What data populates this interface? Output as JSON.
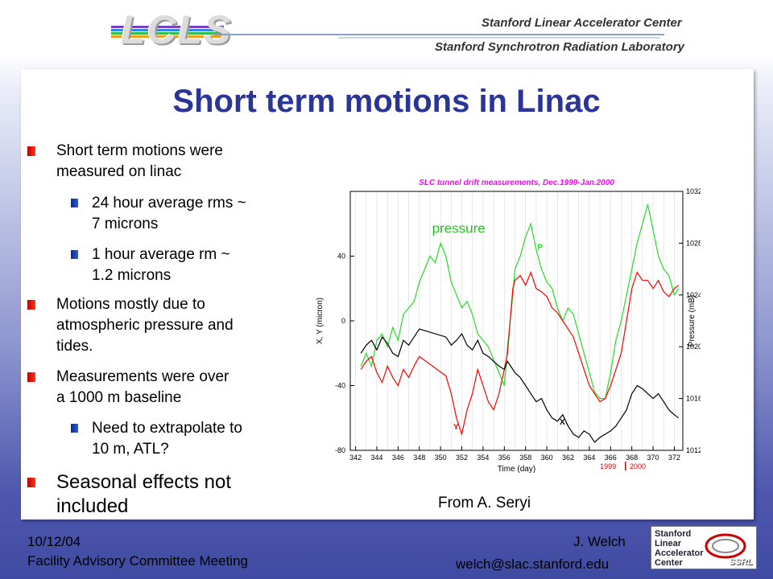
{
  "header": {
    "logo": "LCLS",
    "institution_1": "Stanford Linear Accelerator Center",
    "institution_2": "Stanford Synchrotron Radiation Laboratory"
  },
  "slide": {
    "title": "Short term motions in Linac",
    "bullets": [
      {
        "level": 1,
        "lines": [
          "Short term motions were",
          "measured on linac"
        ]
      },
      {
        "level": 2,
        "lines": [
          "24 hour average rms ~",
          "7 microns"
        ]
      },
      {
        "level": 2,
        "lines": [
          "1 hour average rm ~",
          "1.2 microns"
        ]
      },
      {
        "level": 1,
        "lines": [
          "Motions mostly due to",
          "atmospheric pressure and",
          "tides."
        ]
      },
      {
        "level": 1,
        "lines": [
          "Measurements were over",
          "a 1000 m baseline"
        ]
      },
      {
        "level": 2,
        "lines": [
          "Need to extrapolate to",
          "10 m, ATL?"
        ]
      },
      {
        "level": 1,
        "lines": [
          "Seasonal effects not",
          "included"
        ]
      }
    ],
    "credit": "From A. Seryi"
  },
  "footer": {
    "date": "10/12/04",
    "meeting": "Facility Advisory Committee Meeting",
    "author": "J. Welch",
    "email": "welch@slac.stanford.edu",
    "badge_lines": [
      "Stanford",
      "Linear",
      "Accelerator",
      "Center"
    ],
    "badge_ssrl": "SSRL"
  },
  "chart_data": {
    "type": "line",
    "title": "SLC tunnel drift measurements, Dec.1999-Jan.2000",
    "xlabel": "Time (day)",
    "ylabel": "X, Y (micron)",
    "y2label": "Pressure (mB)",
    "xlim": [
      341.5,
      372.8
    ],
    "ylim": [
      -80,
      80
    ],
    "y2lim": [
      1012,
      1032
    ],
    "xticks": [
      342,
      344,
      346,
      348,
      350,
      352,
      354,
      356,
      358,
      360,
      362,
      364,
      366,
      368,
      370,
      372
    ],
    "yticks": [
      -80,
      -40,
      0,
      40
    ],
    "y2ticks": [
      1012,
      1016,
      1020,
      1024,
      1028,
      1032
    ],
    "annotations": {
      "pressure_label": "pressure",
      "year_1999": "1999",
      "year_2000": "2000"
    },
    "colors": {
      "title": "#ff00ff",
      "pressure": "#22dd22",
      "Y": "#ff0000",
      "X": "#000000",
      "axis_text": "#000000"
    },
    "series": [
      {
        "name": "P",
        "color": "#22dd22",
        "x": [
          342.5,
          343.0,
          343.5,
          344.0,
          344.5,
          345.0,
          345.5,
          346.0,
          346.5,
          347.0,
          347.5,
          348.0,
          348.5,
          349.0,
          349.5,
          350.0,
          350.5,
          351.0,
          351.5,
          352.0,
          352.5,
          353.0,
          353.5,
          354.0,
          354.5,
          355.0,
          355.5,
          356.0,
          356.3,
          356.8,
          357.0,
          357.5,
          358.0,
          358.5,
          359.0,
          359.5,
          360.0,
          360.5,
          361.0,
          361.5,
          362.0,
          362.5,
          363.0,
          363.5,
          364.0,
          364.5,
          365.0,
          365.5,
          366.0,
          366.5,
          367.0,
          367.5,
          368.0,
          368.5,
          369.0,
          369.5,
          370.0,
          370.5,
          371.0,
          371.5,
          372.0,
          372.4
        ],
        "y": [
          1018.5,
          1019.5,
          1018.5,
          1020.5,
          1021.0,
          1020.0,
          1021.5,
          1020.5,
          1022.5,
          1023.0,
          1023.5,
          1025.0,
          1026.0,
          1027.0,
          1026.5,
          1028.0,
          1027.0,
          1025.0,
          1024.0,
          1023.0,
          1023.5,
          1022.5,
          1021.0,
          1020.5,
          1020.0,
          1019.0,
          1018.0,
          1017.0,
          1020.0,
          1024.0,
          1026.0,
          1027.0,
          1028.5,
          1029.5,
          1027.5,
          1026.0,
          1025.0,
          1024.5,
          1023.0,
          1022.0,
          1023.0,
          1022.5,
          1021.0,
          1019.5,
          1018.0,
          1016.5,
          1016.0,
          1016.0,
          1018.0,
          1020.5,
          1022.0,
          1024.0,
          1026.0,
          1028.0,
          1029.5,
          1031.0,
          1029.0,
          1027.0,
          1026.0,
          1025.5,
          1024.0,
          1024.5
        ]
      },
      {
        "name": "Y",
        "color": "#ff0000",
        "x": [
          342.5,
          343.0,
          343.5,
          344.0,
          344.5,
          345.0,
          345.5,
          346.0,
          346.5,
          347.0,
          347.5,
          348.0,
          350.5,
          351.0,
          351.5,
          352.0,
          352.5,
          353.0,
          353.5,
          354.0,
          354.5,
          355.0,
          355.5,
          356.0,
          356.3,
          356.8,
          357.0,
          357.5,
          358.0,
          358.5,
          359.0,
          359.5,
          360.0,
          360.5,
          361.0,
          361.5,
          362.0,
          362.5,
          363.0,
          363.5,
          364.0,
          364.5,
          365.0,
          365.5,
          366.0,
          366.5,
          367.0,
          367.5,
          368.0,
          368.5,
          369.0,
          369.5,
          370.0,
          370.5,
          371.0,
          371.5,
          372.0,
          372.4
        ],
        "y": [
          -30,
          -25,
          -22,
          -32,
          -38,
          -28,
          -35,
          -40,
          -30,
          -35,
          -28,
          -22,
          -34,
          -45,
          -60,
          -70,
          -55,
          -45,
          -30,
          -40,
          -50,
          -55,
          -45,
          -30,
          -20,
          20,
          25,
          28,
          22,
          30,
          20,
          18,
          15,
          8,
          5,
          0,
          -5,
          -10,
          -20,
          -30,
          -40,
          -45,
          -50,
          -48,
          -40,
          -30,
          -20,
          0,
          20,
          30,
          25,
          25,
          20,
          25,
          18,
          15,
          20,
          22
        ]
      },
      {
        "name": "X",
        "color": "#000000",
        "x": [
          342.5,
          343.0,
          343.5,
          344.0,
          344.5,
          345.0,
          345.5,
          346.0,
          346.5,
          347.0,
          347.5,
          348.0,
          350.5,
          351.0,
          351.5,
          352.0,
          352.5,
          353.0,
          353.5,
          354.0,
          354.5,
          355.0,
          355.5,
          356.0,
          356.3,
          356.8,
          357.0,
          357.5,
          358.0,
          358.5,
          359.0,
          359.5,
          360.0,
          360.5,
          361.0,
          361.5,
          362.0,
          362.5,
          363.0,
          363.5,
          364.0,
          364.5,
          365.0,
          365.5,
          366.0,
          366.5,
          367.0,
          367.5,
          368.0,
          368.5,
          369.0,
          369.5,
          370.0,
          370.5,
          371.0,
          371.5,
          372.0,
          372.4
        ],
        "y": [
          -20,
          -15,
          -12,
          -18,
          -10,
          -14,
          -20,
          -22,
          -12,
          -15,
          -10,
          -5,
          -10,
          -15,
          -12,
          -8,
          -15,
          -18,
          -12,
          -20,
          -22,
          -25,
          -28,
          -30,
          -25,
          -30,
          -32,
          -35,
          -40,
          -45,
          -50,
          -48,
          -55,
          -60,
          -62,
          -58,
          -65,
          -70,
          -72,
          -68,
          -70,
          -75,
          -72,
          -70,
          -68,
          -65,
          -60,
          -55,
          -45,
          -40,
          -42,
          -45,
          -48,
          -45,
          -50,
          -55,
          -58,
          -60
        ]
      }
    ]
  }
}
